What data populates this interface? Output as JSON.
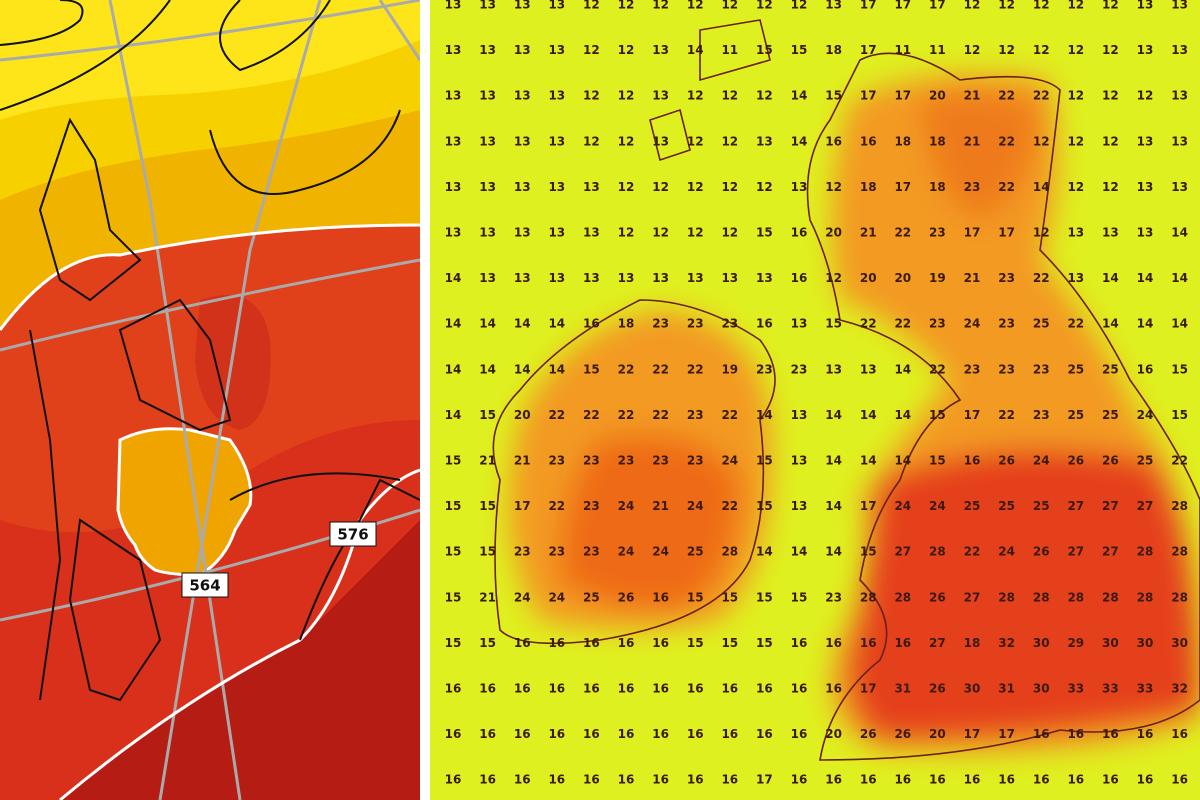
{
  "left_map": {
    "contour_labels": [
      "576",
      "564"
    ]
  },
  "grid": {
    "rows": [
      [
        13,
        13,
        13,
        13,
        12,
        12,
        12,
        12,
        12,
        12,
        12,
        13,
        17,
        17,
        17,
        12,
        12,
        12,
        12,
        12,
        13,
        13
      ],
      [
        13,
        13,
        13,
        13,
        12,
        12,
        13,
        14,
        11,
        15,
        15,
        18,
        17,
        11,
        11,
        12,
        12,
        12,
        12,
        12,
        13,
        13
      ],
      [
        13,
        13,
        13,
        13,
        12,
        12,
        13,
        12,
        12,
        12,
        14,
        15,
        17,
        17,
        20,
        21,
        22,
        22,
        12,
        12,
        12,
        13
      ],
      [
        13,
        13,
        13,
        13,
        12,
        12,
        13,
        12,
        12,
        13,
        14,
        16,
        16,
        18,
        18,
        21,
        22,
        12,
        12,
        12,
        13,
        13
      ],
      [
        13,
        13,
        13,
        13,
        13,
        12,
        12,
        12,
        12,
        12,
        13,
        12,
        18,
        17,
        18,
        23,
        22,
        14,
        12,
        12,
        13,
        13
      ],
      [
        13,
        13,
        13,
        13,
        13,
        12,
        12,
        12,
        12,
        15,
        16,
        20,
        21,
        22,
        23,
        17,
        17,
        12,
        13,
        13,
        13,
        14
      ],
      [
        14,
        13,
        13,
        13,
        13,
        13,
        13,
        13,
        13,
        13,
        16,
        12,
        20,
        20,
        19,
        21,
        23,
        22,
        13,
        14,
        14,
        14
      ],
      [
        14,
        14,
        14,
        14,
        16,
        18,
        23,
        23,
        23,
        16,
        13,
        15,
        22,
        22,
        23,
        24,
        23,
        25,
        22,
        14,
        14,
        14
      ],
      [
        14,
        14,
        14,
        14,
        15,
        22,
        22,
        22,
        19,
        23,
        23,
        13,
        13,
        14,
        22,
        23,
        23,
        23,
        25,
        25,
        16,
        15
      ],
      [
        14,
        15,
        20,
        22,
        22,
        22,
        22,
        23,
        22,
        14,
        13,
        14,
        14,
        14,
        15,
        17,
        22,
        23,
        25,
        25,
        24,
        15
      ],
      [
        15,
        21,
        21,
        23,
        23,
        23,
        23,
        23,
        24,
        15,
        13,
        14,
        14,
        14,
        15,
        16,
        26,
        24,
        26,
        26,
        25,
        22
      ],
      [
        15,
        15,
        17,
        22,
        23,
        24,
        21,
        24,
        22,
        15,
        13,
        14,
        17,
        24,
        24,
        25,
        25,
        25,
        27,
        27,
        27,
        28
      ],
      [
        15,
        15,
        23,
        23,
        23,
        24,
        24,
        25,
        28,
        14,
        14,
        14,
        15,
        27,
        28,
        22,
        24,
        26,
        27,
        27,
        28,
        28
      ],
      [
        15,
        21,
        24,
        24,
        25,
        26,
        16,
        15,
        15,
        15,
        15,
        23,
        28,
        28,
        26,
        27,
        28,
        28,
        28,
        28,
        28,
        28
      ],
      [
        15,
        15,
        16,
        16,
        16,
        16,
        16,
        15,
        15,
        15,
        16,
        16,
        16,
        16,
        27,
        18,
        32,
        30,
        29,
        30,
        30,
        30
      ],
      [
        16,
        16,
        16,
        16,
        16,
        16,
        16,
        16,
        16,
        16,
        16,
        16,
        17,
        31,
        26,
        30,
        31,
        30,
        33,
        33,
        33,
        32
      ],
      [
        16,
        16,
        16,
        16,
        16,
        16,
        16,
        16,
        16,
        16,
        16,
        20,
        26,
        26,
        20,
        17,
        17,
        16,
        16,
        16,
        16,
        16
      ],
      [
        16,
        16,
        16,
        16,
        16,
        16,
        16,
        16,
        16,
        17,
        16,
        16,
        16,
        16,
        16,
        16,
        16,
        16,
        16,
        16,
        16,
        16
      ]
    ]
  }
}
